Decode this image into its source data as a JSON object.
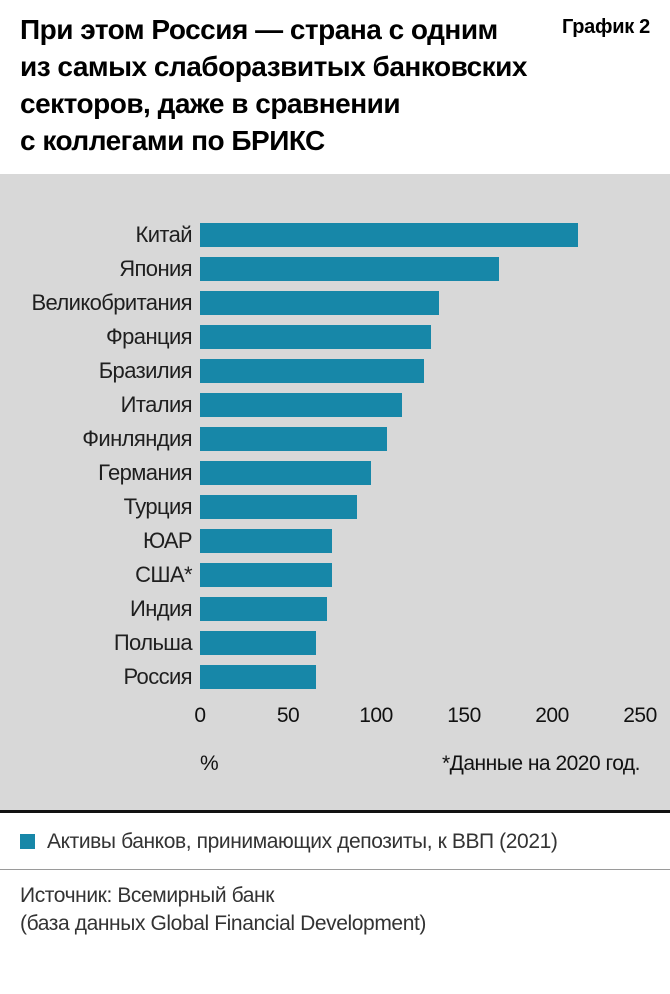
{
  "header": {
    "title": "При этом Россия — страна с одним\nиз самых слаборазвитых банковских\nсекторов, даже в сравнении\nс коллегами по БРИКС",
    "tag": "График 2"
  },
  "chart_data": {
    "type": "bar",
    "orientation": "horizontal",
    "title": "",
    "categories": [
      "Китай",
      "Япония",
      "Великобритания",
      "Франция",
      "Бразилия",
      "Италия",
      "Финляндия",
      "Германия",
      "Турция",
      "ЮАР",
      "США*",
      "Индия",
      "Польша",
      "Россия"
    ],
    "values": [
      215,
      170,
      136,
      131,
      127,
      115,
      106,
      97,
      89,
      75,
      75,
      72,
      66,
      66
    ],
    "xlabel": "%",
    "ylabel": "",
    "xlim": [
      0,
      250
    ],
    "xticks": [
      0,
      50,
      100,
      150,
      200,
      250
    ],
    "grid": false,
    "note": "*Данные на 2020 год.",
    "bar_color": "#1787a8",
    "plot_bg": "#d8d8d8"
  },
  "legend": {
    "swatch_color": "#1787a8",
    "label": "Активы банков, принимающих депозиты, к ВВП (2021)"
  },
  "source": {
    "text": "Источник: Всемирный банк\n(база данных Global Financial Development)"
  }
}
